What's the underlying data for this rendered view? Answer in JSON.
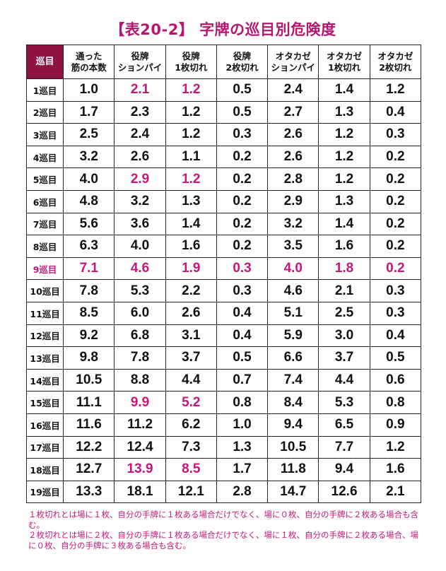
{
  "title": "【表20-2】 字牌の巡目別危険度",
  "columns": {
    "corner": "巡目",
    "headers": [
      [
        "通った",
        "筋の本数"
      ],
      [
        "役牌",
        "ションパイ"
      ],
      [
        "役牌",
        "1枚切れ"
      ],
      [
        "役牌",
        "2枚切れ"
      ],
      [
        "オタカゼ",
        "ションパイ"
      ],
      [
        "オタカゼ",
        "1枚切れ"
      ],
      [
        "オタカゼ",
        "2枚切れ"
      ]
    ]
  },
  "rows": [
    {
      "label": "1巡目",
      "values": [
        "1.0",
        "2.1",
        "1.2",
        "0.5",
        "2.4",
        "1.4",
        "1.2"
      ],
      "highlight": [
        1,
        2
      ]
    },
    {
      "label": "2巡目",
      "values": [
        "1.7",
        "2.3",
        "1.2",
        "0.5",
        "2.7",
        "1.3",
        "0.4"
      ],
      "highlight": []
    },
    {
      "label": "3巡目",
      "values": [
        "2.5",
        "2.4",
        "1.2",
        "0.3",
        "2.6",
        "1.2",
        "0.3"
      ],
      "highlight": []
    },
    {
      "label": "4巡目",
      "values": [
        "3.2",
        "2.6",
        "1.1",
        "0.2",
        "2.6",
        "1.2",
        "0.2"
      ],
      "highlight": []
    },
    {
      "label": "5巡目",
      "values": [
        "4.0",
        "2.9",
        "1.2",
        "0.2",
        "2.8",
        "1.2",
        "0.2"
      ],
      "highlight": [
        1,
        2
      ]
    },
    {
      "label": "6巡目",
      "values": [
        "4.8",
        "3.2",
        "1.3",
        "0.2",
        "2.9",
        "1.3",
        "0.2"
      ],
      "highlight": []
    },
    {
      "label": "7巡目",
      "values": [
        "5.6",
        "3.6",
        "1.4",
        "0.2",
        "3.2",
        "1.4",
        "0.2"
      ],
      "highlight": []
    },
    {
      "label": "8巡目",
      "values": [
        "6.3",
        "4.0",
        "1.6",
        "0.2",
        "3.5",
        "1.6",
        "0.2"
      ],
      "highlight": []
    },
    {
      "label": "9巡目",
      "values": [
        "7.1",
        "4.6",
        "1.9",
        "0.3",
        "4.0",
        "1.8",
        "0.2"
      ],
      "highlight": [
        0,
        1,
        2,
        3,
        4,
        5,
        6
      ],
      "row_highlight": true
    },
    {
      "label": "10巡目",
      "values": [
        "7.8",
        "5.3",
        "2.2",
        "0.3",
        "4.6",
        "2.1",
        "0.3"
      ],
      "highlight": []
    },
    {
      "label": "11巡目",
      "values": [
        "8.5",
        "6.0",
        "2.6",
        "0.4",
        "5.1",
        "2.5",
        "0.3"
      ],
      "highlight": []
    },
    {
      "label": "12巡目",
      "values": [
        "9.2",
        "6.8",
        "3.1",
        "0.4",
        "5.9",
        "3.0",
        "0.4"
      ],
      "highlight": []
    },
    {
      "label": "13巡目",
      "values": [
        "9.8",
        "7.8",
        "3.7",
        "0.5",
        "6.6",
        "3.7",
        "0.5"
      ],
      "highlight": []
    },
    {
      "label": "14巡目",
      "values": [
        "10.5",
        "8.8",
        "4.4",
        "0.7",
        "7.4",
        "4.4",
        "0.6"
      ],
      "highlight": []
    },
    {
      "label": "15巡目",
      "values": [
        "11.1",
        "9.9",
        "5.2",
        "0.8",
        "8.4",
        "5.3",
        "0.8"
      ],
      "highlight": [
        1,
        2
      ]
    },
    {
      "label": "16巡目",
      "values": [
        "11.6",
        "11.2",
        "6.2",
        "1.0",
        "9.4",
        "6.5",
        "0.9"
      ],
      "highlight": []
    },
    {
      "label": "17巡目",
      "values": [
        "12.2",
        "12.4",
        "7.3",
        "1.3",
        "10.5",
        "7.7",
        "1.2"
      ],
      "highlight": []
    },
    {
      "label": "18巡目",
      "values": [
        "12.7",
        "13.9",
        "8.5",
        "1.7",
        "11.8",
        "9.4",
        "1.6"
      ],
      "highlight": [
        1,
        2
      ]
    },
    {
      "label": "19巡目",
      "values": [
        "13.3",
        "18.1",
        "12.1",
        "2.8",
        "14.7",
        "12.6",
        "2.1"
      ],
      "highlight": []
    }
  ],
  "notes": [
    "１枚切れとは場に１枚、自分の手牌に１枚ある場合だけでなく、場に０枚、自分の手牌に２枚ある場合も含む。",
    "２枚切れとは場に２枚、自分の手牌に１枚ある場合だけでなく、場に１枚、自分の手牌に２枚ある場合、場に０枚、自分の手牌に３枚ある場合も含む。"
  ],
  "colors": {
    "accent": "#c2187a",
    "header_corner": "#8c1342"
  }
}
